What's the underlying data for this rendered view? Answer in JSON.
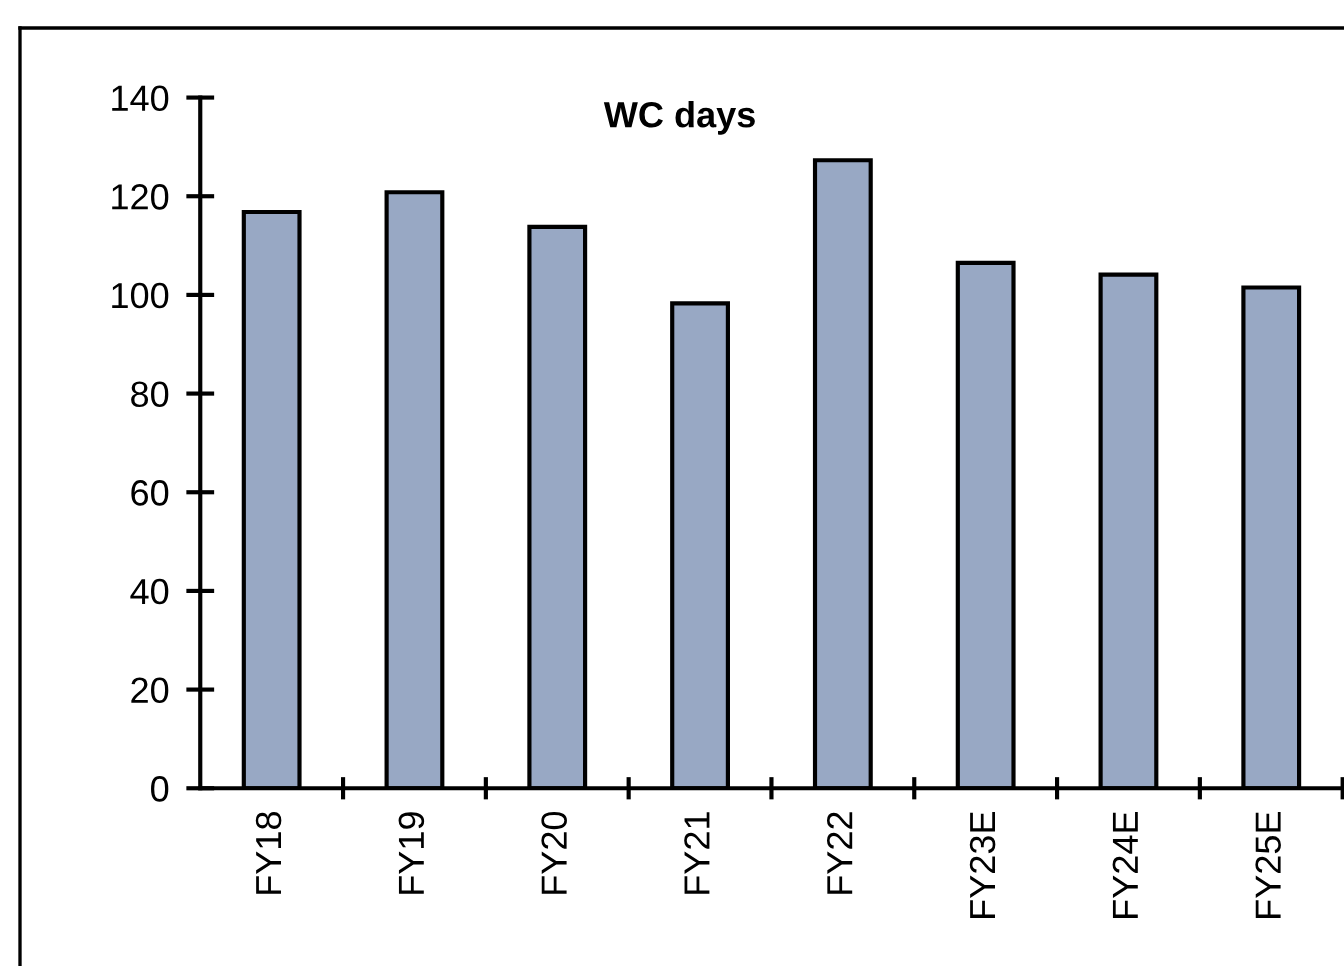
{
  "chart_data": {
    "type": "bar",
    "title": "WC days",
    "categories": [
      "FY18",
      "FY19",
      "FY20",
      "FY21",
      "FY22",
      "FY23E",
      "FY24E",
      "FY25E"
    ],
    "values": [
      116.8,
      120.8,
      113.8,
      98.3,
      127.3,
      106.5,
      104.1,
      101.5
    ],
    "color": "#98a8c4",
    "ylim": [
      0,
      140
    ],
    "yticks": [
      0,
      20,
      40,
      60,
      80,
      100,
      120,
      140
    ],
    "grid": false
  }
}
